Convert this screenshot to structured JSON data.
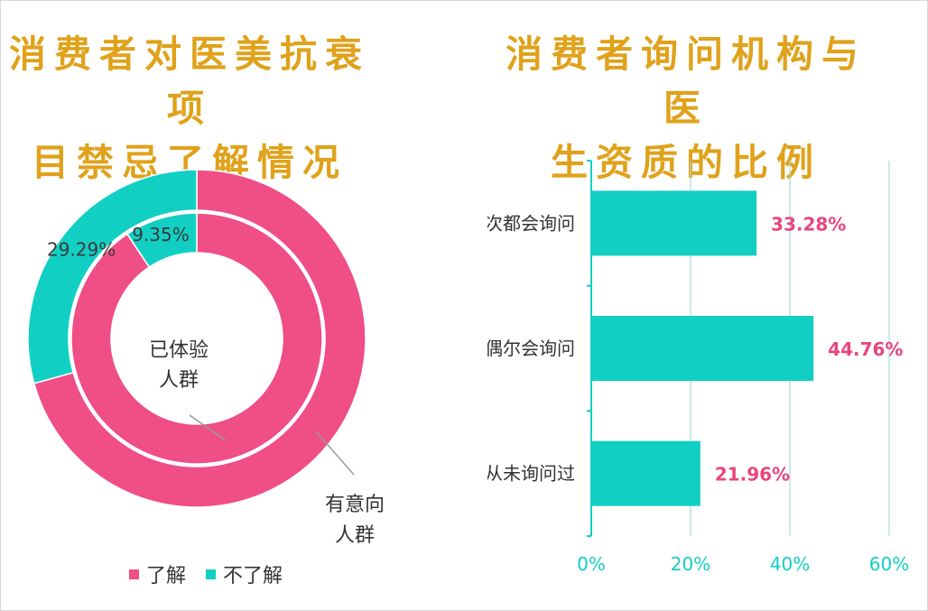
{
  "colors": {
    "pink": "#ef4e86",
    "teal": "#12cfc4",
    "title_gold": "#e0a21b",
    "label_pink": "#e8467e",
    "axis_teal": "#12cfc4",
    "grid": "#a8dcd9"
  },
  "left": {
    "title_lines": [
      "消费者对医美抗衰项",
      "目禁忌了解情况"
    ],
    "callouts": {
      "inner": [
        "已体验",
        "人群"
      ],
      "outer": [
        "有意向",
        "人群"
      ]
    },
    "legend": [
      "了解",
      "不了解"
    ]
  },
  "right": {
    "title_lines": [
      "消费者询问机构与医",
      "生资质的比例"
    ]
  },
  "chart_data": [
    {
      "type": "pie",
      "subtype": "donut",
      "categories": [
        "了解",
        "不了解"
      ],
      "series": [
        {
          "name": "已体验人群",
          "values": [
            90.65,
            9.35
          ],
          "labels": [
            "",
            "9.35%"
          ]
        },
        {
          "name": "有意向人群",
          "values": [
            70.71,
            29.29
          ],
          "labels": [
            "",
            "29.29%"
          ]
        }
      ],
      "legend_position": "bottom"
    },
    {
      "type": "bar",
      "orientation": "horizontal",
      "categories": [
        "每次都会询问",
        "偶尔会询问",
        "从未询问过"
      ],
      "values": [
        33.28,
        44.76,
        21.96
      ],
      "value_labels": [
        "33.28%",
        "44.76%",
        "21.96%"
      ],
      "xlim": [
        0,
        60
      ],
      "xticks": [
        "0%",
        "20%",
        "40%",
        "60%"
      ],
      "grid": true
    }
  ]
}
